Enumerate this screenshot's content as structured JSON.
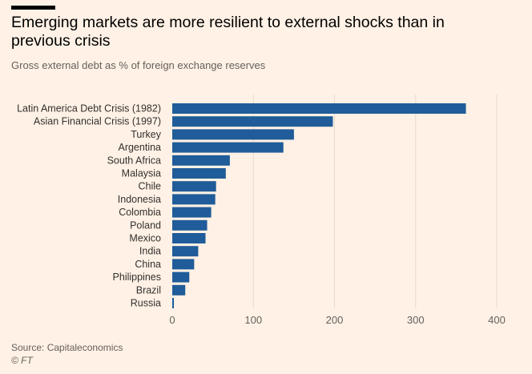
{
  "header": {
    "title": "Emerging markets are more resilient to external shocks than in previous crisis",
    "subtitle": "Gross external debt as % of foreign exchange reserves"
  },
  "footer": {
    "source": "Source: Capitaleconomics",
    "credit": "© FT"
  },
  "colors": {
    "background": "#fff1e5",
    "bar": "#1f5c99",
    "grid": "#e6d9ce",
    "text": "#33302e"
  },
  "chart_data": {
    "type": "bar",
    "orientation": "horizontal",
    "categories": [
      "Latin America Debt Crisis (1982)",
      "Asian Financial Crisis (1997)",
      "Turkey",
      "Argentina",
      "South Africa",
      "Malaysia",
      "Chile",
      "Indonesia",
      "Colombia",
      "Poland",
      "Mexico",
      "India",
      "China",
      "Philippines",
      "Brazil",
      "Russia"
    ],
    "values": [
      362,
      198,
      150,
      137,
      71,
      66,
      54,
      53,
      48,
      43,
      41,
      32,
      27,
      21,
      16,
      2
    ],
    "xlim": [
      0,
      400
    ],
    "xticks": [
      0,
      100,
      200,
      300,
      400
    ],
    "grid": true,
    "legend": "none"
  }
}
